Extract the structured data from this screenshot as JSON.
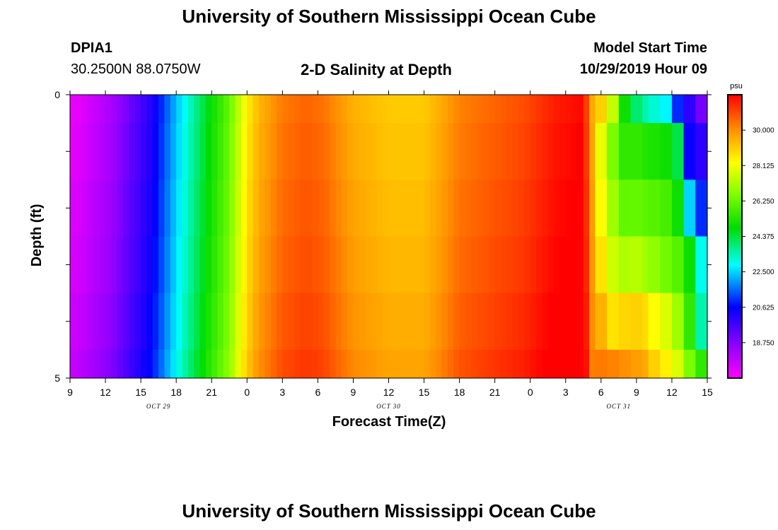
{
  "header": {
    "title_top": "University of Southern Mississippi Ocean Cube",
    "title_bottom": "University of Southern Mississippi Ocean Cube",
    "station_id": "DPIA1",
    "station_coords": "30.2500N 88.0750W",
    "model_start_label": "Model Start Time",
    "model_start_value": "10/29/2019 Hour 09"
  },
  "chart_data": {
    "type": "heatmap",
    "title": "2-D Salinity at Depth",
    "xlabel": "Forecast Time(Z)",
    "ylabel": "Depth (ft)",
    "x_tick_labels": [
      "9",
      "12",
      "15",
      "18",
      "21",
      "0",
      "3",
      "6",
      "9",
      "12",
      "15",
      "18",
      "21",
      "0",
      "3",
      "6",
      "9",
      "12",
      "15"
    ],
    "date_labels": [
      "OCT 29",
      "OCT 30",
      "OCT 31"
    ],
    "y_tick_labels": [
      "0",
      "5"
    ],
    "ylim": [
      0,
      5
    ],
    "x_range_hours": [
      0,
      54
    ],
    "colorbar": {
      "unit": "psu",
      "tick_labels": [
        "30.000",
        "28.125",
        "26.250",
        "24.375",
        "22.500",
        "20.625",
        "18.750"
      ],
      "range": [
        16.875,
        31.875
      ]
    },
    "depth_layer_edges": [
      0,
      0.5,
      1.5,
      2.5,
      3.5,
      4.5,
      5
    ],
    "surface_series": [
      {
        "hour": 0.5,
        "value": 17.2
      },
      {
        "hour": 3.5,
        "value": 18.2
      },
      {
        "hour": 7,
        "value": 20.2
      },
      {
        "hour": 9,
        "value": 22.3
      },
      {
        "hour": 11.5,
        "value": 24.5
      },
      {
        "hour": 13.5,
        "value": 26.2
      },
      {
        "hour": 15,
        "value": 28.5
      },
      {
        "hour": 16,
        "value": 29.4
      },
      {
        "hour": 18,
        "value": 30.3
      },
      {
        "hour": 20,
        "value": 30.6
      },
      {
        "hour": 21.5,
        "value": 30.4
      },
      {
        "hour": 24,
        "value": 29.5
      },
      {
        "hour": 27,
        "value": 29.1
      },
      {
        "hour": 30,
        "value": 29.1
      },
      {
        "hour": 31.5,
        "value": 29.6
      },
      {
        "hour": 33,
        "value": 30.2
      },
      {
        "hour": 36,
        "value": 30.6
      },
      {
        "hour": 38.5,
        "value": 30.9
      },
      {
        "hour": 41,
        "value": 31.5
      },
      {
        "hour": 43.5,
        "value": 31.8
      },
      {
        "hour": 44.2,
        "value": 29.8
      },
      {
        "hour": 45,
        "value": 27.2
      },
      {
        "hour": 46.5,
        "value": 24.7
      },
      {
        "hour": 48.5,
        "value": 23.3
      },
      {
        "hour": 51,
        "value": 22.4
      },
      {
        "hour": 52.5,
        "value": 20.2
      },
      {
        "hour": 53.5,
        "value": 18.8
      }
    ],
    "right_region": {
      "start_hour": 44.5,
      "rows": [
        {
          "depth": "0.0-0.5",
          "values": [
            29.0,
            27.5,
            25.0,
            24.0,
            23.5,
            23.2,
            22.8,
            21.0,
            20.0,
            19.0
          ]
        },
        {
          "depth": "0.5-1.5",
          "values": [
            28.0,
            26.5,
            25.5,
            25.5,
            25.3,
            25.2,
            25.0,
            24.3,
            20.5,
            20.0
          ]
        },
        {
          "depth": "1.5-2.5",
          "values": [
            28.3,
            27.0,
            26.2,
            26.2,
            26.1,
            26.0,
            25.8,
            25.0,
            22.5,
            21.0
          ]
        },
        {
          "depth": "2.5-3.5",
          "values": [
            28.7,
            27.6,
            27.2,
            27.3,
            27.0,
            26.8,
            26.4,
            26.0,
            25.0,
            23.0
          ]
        },
        {
          "depth": "3.5-4.5",
          "values": [
            29.5,
            28.7,
            28.9,
            29.0,
            28.8,
            28.3,
            27.8,
            27.0,
            25.5,
            23.5
          ]
        },
        {
          "depth": "4.5-5.0",
          "values": [
            30.3,
            30.2,
            30.0,
            29.8,
            29.6,
            29.0,
            28.5,
            27.8,
            26.5,
            25.5
          ]
        }
      ]
    },
    "depth_offsets": [
      0.0,
      0.1,
      0.2,
      0.3,
      0.45,
      0.6
    ]
  }
}
